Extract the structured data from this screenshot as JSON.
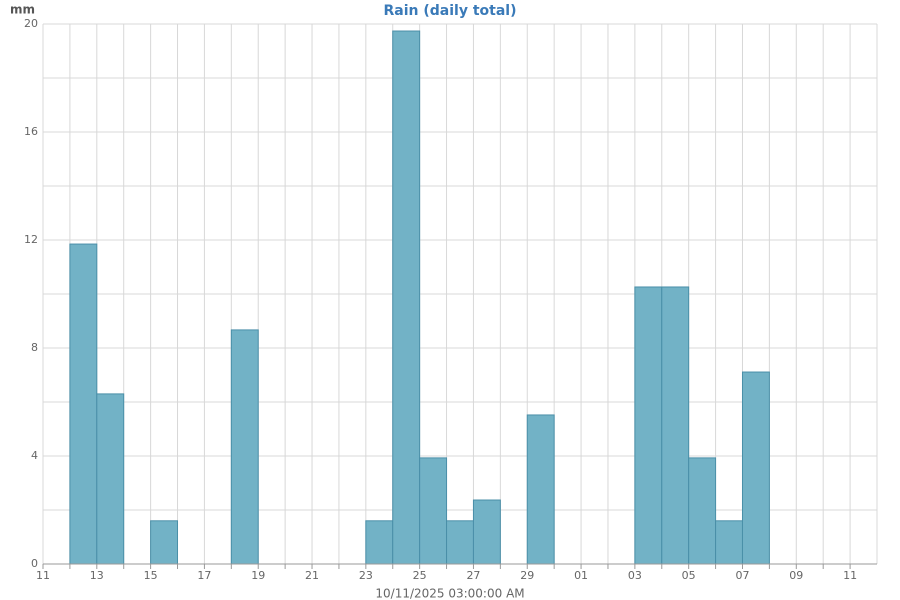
{
  "chart_data": {
    "type": "bar",
    "title": "Rain (daily total)",
    "y_label": "mm",
    "x_label": "10/11/2025 03:00:00 AM",
    "categories": [
      "11",
      null,
      "13",
      null,
      "15",
      null,
      "17",
      null,
      "19",
      null,
      "21",
      null,
      "23",
      null,
      "25",
      null,
      "27",
      null,
      "29",
      null,
      "01",
      null,
      "03",
      null,
      "05",
      null,
      "07",
      null,
      "09",
      null,
      "11"
    ],
    "values": [
      0,
      11.85,
      6.3,
      0,
      1.6,
      0,
      0,
      8.67,
      0,
      0,
      0,
      0,
      1.6,
      19.74,
      3.93,
      1.6,
      2.37,
      0,
      5.52,
      0,
      0,
      0,
      10.26,
      10.26,
      3.93,
      1.6,
      7.11,
      0,
      0,
      0,
      0
    ],
    "color": "#72b2c6",
    "ylim": [
      0,
      20
    ],
    "yticks": [
      0,
      4,
      8,
      12,
      16,
      20
    ],
    "minor_yticks": [
      2,
      6,
      10,
      14,
      18
    ],
    "grid": true
  }
}
